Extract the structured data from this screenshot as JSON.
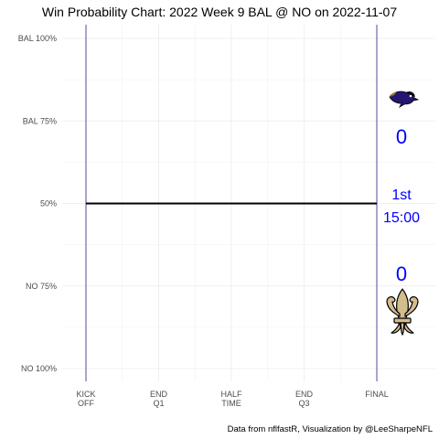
{
  "chart_data": {
    "type": "line",
    "title": "Win Probability Chart: 2022 Week 9 BAL @ NO on 2022-11-07",
    "caption": "Data from nflfastR, Visualization by @LeeSharpeNFL",
    "xlim": [
      0,
      3600
    ],
    "ylim": [
      0,
      1
    ],
    "y_ticks": [
      {
        "value": 1.0,
        "label": "BAL 100%"
      },
      {
        "value": 0.75,
        "label": "BAL 75%"
      },
      {
        "value": 0.5,
        "label": "50%"
      },
      {
        "value": 0.25,
        "label": "NO 75%"
      },
      {
        "value": 0.0,
        "label": "NO 100%"
      }
    ],
    "x_ticks": [
      {
        "value": 0,
        "label": [
          "KICK",
          "OFF"
        ]
      },
      {
        "value": 900,
        "label": [
          "END",
          "Q1"
        ]
      },
      {
        "value": 1800,
        "label": [
          "HALF",
          "TIME"
        ]
      },
      {
        "value": 2700,
        "label": [
          "END",
          "Q3"
        ]
      },
      {
        "value": 3600,
        "label": [
          "FINAL"
        ]
      }
    ],
    "series": [
      {
        "x": [
          0,
          3600
        ],
        "y": [
          0.5,
          0.5
        ],
        "color": "#000000"
      }
    ],
    "vertical_lines": [
      0,
      3600
    ],
    "vertical_line_color": "#3b3b8f",
    "grid": true,
    "annotations": {
      "away_team": "BAL",
      "home_team": "NO",
      "away_score": "0",
      "home_score": "0",
      "quarter": "1st",
      "clock": "15:00",
      "text_color": "#0000ff"
    },
    "logos": [
      {
        "team": "BAL",
        "icon": "ravens-logo-icon"
      },
      {
        "team": "NO",
        "icon": "saints-fleur-de-lis-icon"
      }
    ]
  }
}
